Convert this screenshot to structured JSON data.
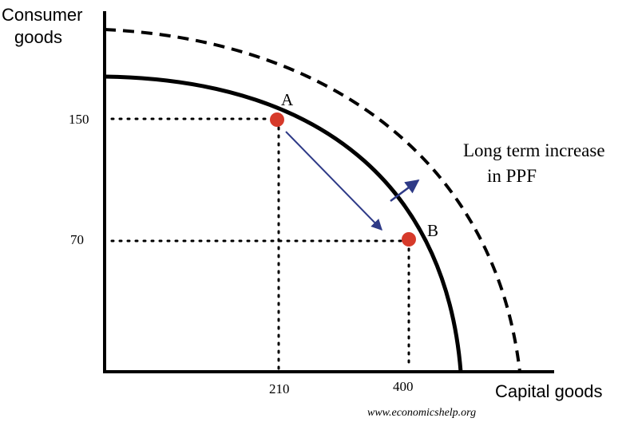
{
  "diagram": {
    "y_axis_label_line1": "Consumer",
    "y_axis_label_line2": "goods",
    "x_axis_label": "Capital goods",
    "y_ticks": [
      "150",
      "70"
    ],
    "x_ticks": [
      "210",
      "400"
    ],
    "point_a_label": "A",
    "point_b_label": "B",
    "annotation_line1": "Long term increase",
    "annotation_line2": "in PPF",
    "credit": "www.economicshelp.org",
    "point_color": "#d63a2a",
    "arrow_color": "#2e3a87",
    "curve_color": "#000000"
  }
}
